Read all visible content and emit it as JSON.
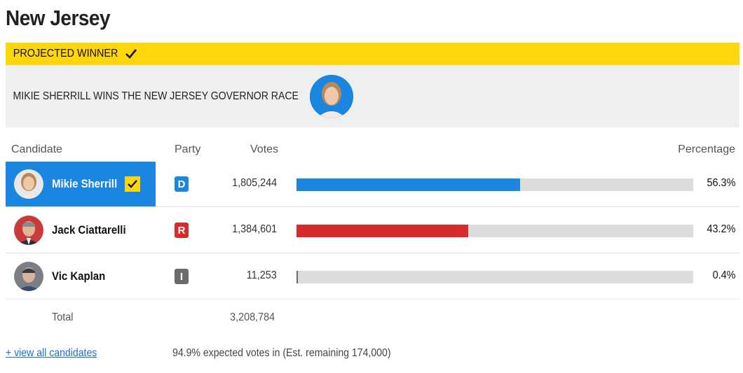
{
  "state": {
    "title": "New Jersey"
  },
  "banner": {
    "label": "PROJECTED WINNER",
    "headline": "MIKIE SHERRILL WINS THE NEW JERSEY GOVERNOR RACE"
  },
  "columns": {
    "candidate": "Candidate",
    "party": "Party",
    "votes": "Votes",
    "percentage": "Percentage"
  },
  "candidates": [
    {
      "name": "Mikie Sherrill",
      "party": "D",
      "votes": "1,805,244",
      "percentage": "56.3%",
      "share": 56.3,
      "winner": true
    },
    {
      "name": "Jack Ciattarelli",
      "party": "R",
      "votes": "1,384,601",
      "percentage": "43.2%",
      "share": 43.2,
      "winner": false
    },
    {
      "name": "Vic Kaplan",
      "party": "I",
      "votes": "11,253",
      "percentage": "0.4%",
      "share": 0.4,
      "winner": false
    }
  ],
  "total": {
    "label": "Total",
    "votes": "3,208,784"
  },
  "footer": {
    "view_all": "+ view all candidates",
    "expected": "94.9% expected votes in (Est. remaining 174,000)"
  },
  "colors": {
    "accent_yellow": "#ffd60a",
    "democrat": "#1a86e0",
    "republican": "#d92a2a",
    "independent": "#6b6b6b",
    "bar_track": "#dcdcdc"
  },
  "icons": {
    "winner_check": "checkmark-icon",
    "avatar": "candidate-avatar"
  }
}
